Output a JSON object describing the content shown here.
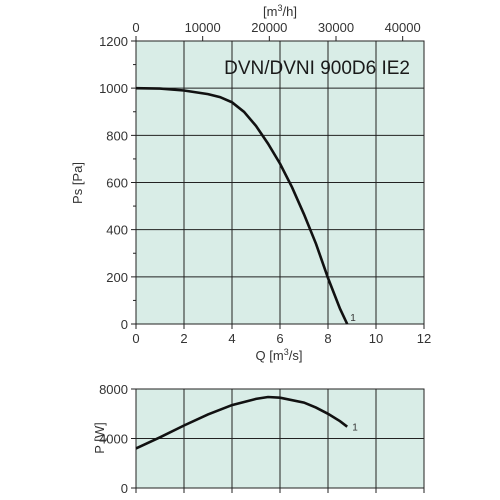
{
  "colors": {
    "plot_background": "#d9ede7",
    "grid": "#222222",
    "curve": "#111111",
    "text": "#333333"
  },
  "chart_data": [
    {
      "type": "line",
      "title": "DVN/DVNI 900D6 IE2",
      "xlabel_prefix": "Q [m",
      "xlabel_sup": "3",
      "xlabel_suffix": "/s]",
      "ylabel": "Ps [Pa]",
      "secondary_x_label_prefix": "[m",
      "secondary_x_label_sup": "3",
      "secondary_x_label_suffix": "/h]",
      "xlim": [
        0,
        12
      ],
      "ylim": [
        0,
        1200
      ],
      "x_ticks": [
        0,
        2,
        4,
        6,
        8,
        10,
        12
      ],
      "y_ticks": [
        0,
        200,
        400,
        600,
        800,
        1000,
        1200
      ],
      "secondary_x_lim": [
        0,
        43200
      ],
      "secondary_x_ticks": [
        0,
        10000,
        20000,
        30000,
        40000
      ],
      "secondary_x_tick_labels": [
        "0",
        "10000",
        "20000",
        "30000",
        "40000"
      ],
      "grid": true,
      "series": [
        {
          "name": "1",
          "x": [
            0,
            1,
            2,
            3,
            3.5,
            4,
            4.5,
            5,
            5.5,
            6,
            6.5,
            7,
            7.5,
            8,
            8.5,
            8.8
          ],
          "y": [
            1000,
            998,
            990,
            975,
            962,
            940,
            900,
            840,
            765,
            680,
            580,
            465,
            340,
            195,
            65,
            0
          ]
        }
      ]
    },
    {
      "type": "line",
      "title": "",
      "xlabel": "",
      "ylabel": "P [W]",
      "xlim": [
        0,
        12
      ],
      "ylim": [
        0,
        8000
      ],
      "y_ticks": [
        0,
        4000,
        8000
      ],
      "grid": true,
      "series": [
        {
          "name": "1",
          "x": [
            0,
            1,
            2,
            3,
            4,
            5,
            5.5,
            6,
            7,
            7.5,
            8,
            8.5,
            8.8
          ],
          "y": [
            3200,
            4100,
            5050,
            5950,
            6700,
            7200,
            7350,
            7300,
            6900,
            6500,
            6000,
            5400,
            4950
          ]
        }
      ]
    }
  ]
}
